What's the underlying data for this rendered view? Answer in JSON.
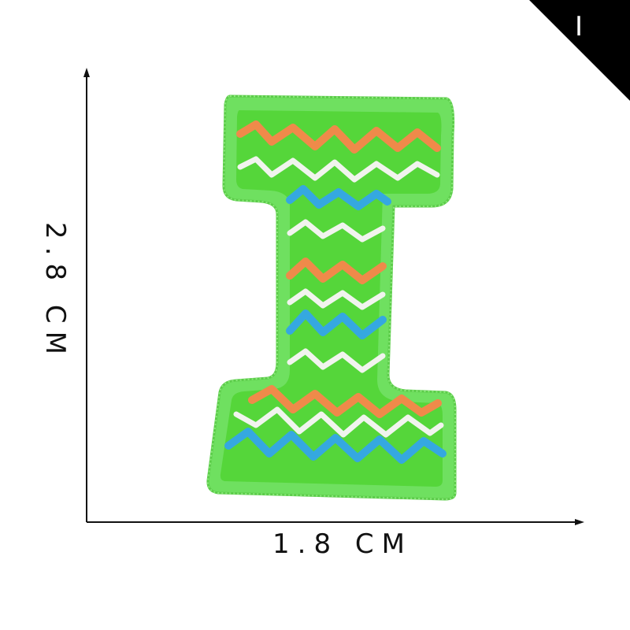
{
  "corner_badge": {
    "letter": "I"
  },
  "dimensions": {
    "width_label": "1.8 CM",
    "height_label": "2.8 CM"
  },
  "patch": {
    "shape": "letter-I",
    "colors": {
      "border": "#6fe060",
      "fill": "#55d63a",
      "orange": "#ef8a4a",
      "white": "#f1f4ee",
      "blue": "#35a8e0"
    }
  }
}
